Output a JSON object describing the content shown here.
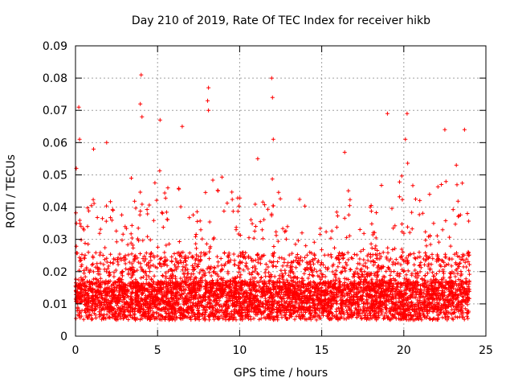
{
  "chart_data": {
    "type": "scatter",
    "title": "Day 210 of 2019, Rate Of TEC Index for receiver hikb",
    "xlabel": "GPS time / hours",
    "ylabel": "ROTI / TECUs",
    "xlim": [
      0,
      25
    ],
    "ylim": [
      0,
      0.09
    ],
    "xticks": [
      0,
      5,
      10,
      15,
      20,
      25
    ],
    "yticks": [
      0,
      0.01,
      0.02,
      0.03,
      0.04,
      0.05,
      0.06,
      0.07,
      0.08,
      0.09
    ],
    "grid": true,
    "marker": "plus",
    "color": "#ff0000",
    "data_x_range": [
      0,
      24
    ],
    "notable_points": [
      {
        "x": 0.2,
        "y": 0.071
      },
      {
        "x": 0.25,
        "y": 0.061
      },
      {
        "x": 0.05,
        "y": 0.052
      },
      {
        "x": 1.1,
        "y": 0.058
      },
      {
        "x": 1.9,
        "y": 0.06
      },
      {
        "x": 3.4,
        "y": 0.049
      },
      {
        "x": 4.0,
        "y": 0.081
      },
      {
        "x": 3.95,
        "y": 0.072
      },
      {
        "x": 4.05,
        "y": 0.068
      },
      {
        "x": 5.15,
        "y": 0.067
      },
      {
        "x": 6.5,
        "y": 0.065
      },
      {
        "x": 8.1,
        "y": 0.077
      },
      {
        "x": 8.05,
        "y": 0.073
      },
      {
        "x": 8.1,
        "y": 0.07
      },
      {
        "x": 11.1,
        "y": 0.055
      },
      {
        "x": 11.95,
        "y": 0.08
      },
      {
        "x": 12.0,
        "y": 0.074
      },
      {
        "x": 12.05,
        "y": 0.061
      },
      {
        "x": 16.4,
        "y": 0.057
      },
      {
        "x": 19.0,
        "y": 0.069
      },
      {
        "x": 20.2,
        "y": 0.069
      },
      {
        "x": 20.1,
        "y": 0.061
      },
      {
        "x": 22.5,
        "y": 0.064
      },
      {
        "x": 23.7,
        "y": 0.064
      },
      {
        "x": 23.2,
        "y": 0.053
      }
    ],
    "envelope": {
      "hours": [
        0,
        0.5,
        1,
        1.5,
        2,
        2.5,
        3,
        3.5,
        4,
        4.5,
        5,
        5.5,
        6,
        6.5,
        7,
        7.5,
        8,
        8.5,
        9,
        9.5,
        10,
        10.5,
        11,
        11.5,
        12,
        12.5,
        13,
        13.5,
        14,
        14.5,
        15,
        15.5,
        16,
        16.5,
        17,
        17.5,
        18,
        18.5,
        19,
        19.5,
        20,
        20.5,
        21,
        21.5,
        22,
        22.5,
        23,
        23.5,
        24
      ],
      "upper": [
        0.048,
        0.037,
        0.05,
        0.045,
        0.048,
        0.043,
        0.038,
        0.042,
        0.05,
        0.042,
        0.055,
        0.052,
        0.05,
        0.046,
        0.04,
        0.04,
        0.05,
        0.052,
        0.055,
        0.046,
        0.043,
        0.038,
        0.046,
        0.043,
        0.05,
        0.044,
        0.04,
        0.044,
        0.042,
        0.037,
        0.036,
        0.033,
        0.04,
        0.05,
        0.038,
        0.04,
        0.042,
        0.046,
        0.055,
        0.037,
        0.06,
        0.05,
        0.042,
        0.044,
        0.046,
        0.05,
        0.045,
        0.05,
        0.04
      ]
    }
  }
}
